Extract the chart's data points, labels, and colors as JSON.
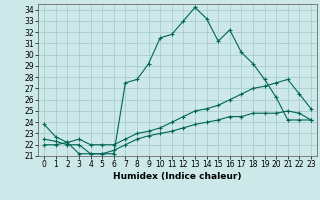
{
  "xlabel": "Humidex (Indice chaleur)",
  "background_color": "#cce8e8",
  "grid_color": "#aacccc",
  "line_color": "#006655",
  "xlim": [
    -0.5,
    23.5
  ],
  "ylim": [
    21,
    34.5
  ],
  "yticks": [
    21,
    22,
    23,
    24,
    25,
    26,
    27,
    28,
    29,
    30,
    31,
    32,
    33,
    34
  ],
  "xticks": [
    0,
    1,
    2,
    3,
    4,
    5,
    6,
    7,
    8,
    9,
    10,
    11,
    12,
    13,
    14,
    15,
    16,
    17,
    18,
    19,
    20,
    21,
    22,
    23
  ],
  "series": [
    {
      "x": [
        0,
        1,
        2,
        3,
        4,
        5,
        6,
        7,
        8,
        9,
        10,
        11,
        12,
        13,
        14,
        15,
        16,
        17,
        18,
        19,
        20,
        21,
        22,
        23
      ],
      "y": [
        23.8,
        22.7,
        22.2,
        21.2,
        21.2,
        21.2,
        21.2,
        27.5,
        27.8,
        29.2,
        31.5,
        31.8,
        33.0,
        34.2,
        33.2,
        31.2,
        32.2,
        30.2,
        29.2,
        27.8,
        26.2,
        24.2,
        24.2,
        24.2
      ]
    },
    {
      "x": [
        0,
        1,
        2,
        3,
        4,
        5,
        6,
        7,
        8,
        9,
        10,
        11,
        12,
        13,
        14,
        15,
        16,
        17,
        18,
        19,
        20,
        21,
        22,
        23
      ],
      "y": [
        22.0,
        22.0,
        22.2,
        22.5,
        22.0,
        22.0,
        22.0,
        22.5,
        23.0,
        23.2,
        23.5,
        24.0,
        24.5,
        25.0,
        25.2,
        25.5,
        26.0,
        26.5,
        27.0,
        27.2,
        27.5,
        27.8,
        26.5,
        25.2
      ]
    },
    {
      "x": [
        0,
        1,
        2,
        3,
        4,
        5,
        6,
        7,
        8,
        9,
        10,
        11,
        12,
        13,
        14,
        15,
        16,
        17,
        18,
        19,
        20,
        21,
        22,
        23
      ],
      "y": [
        22.5,
        22.3,
        22.0,
        22.0,
        21.2,
        21.2,
        21.5,
        22.0,
        22.5,
        22.8,
        23.0,
        23.2,
        23.5,
        23.8,
        24.0,
        24.2,
        24.5,
        24.5,
        24.8,
        24.8,
        24.8,
        25.0,
        24.8,
        24.2
      ]
    }
  ]
}
